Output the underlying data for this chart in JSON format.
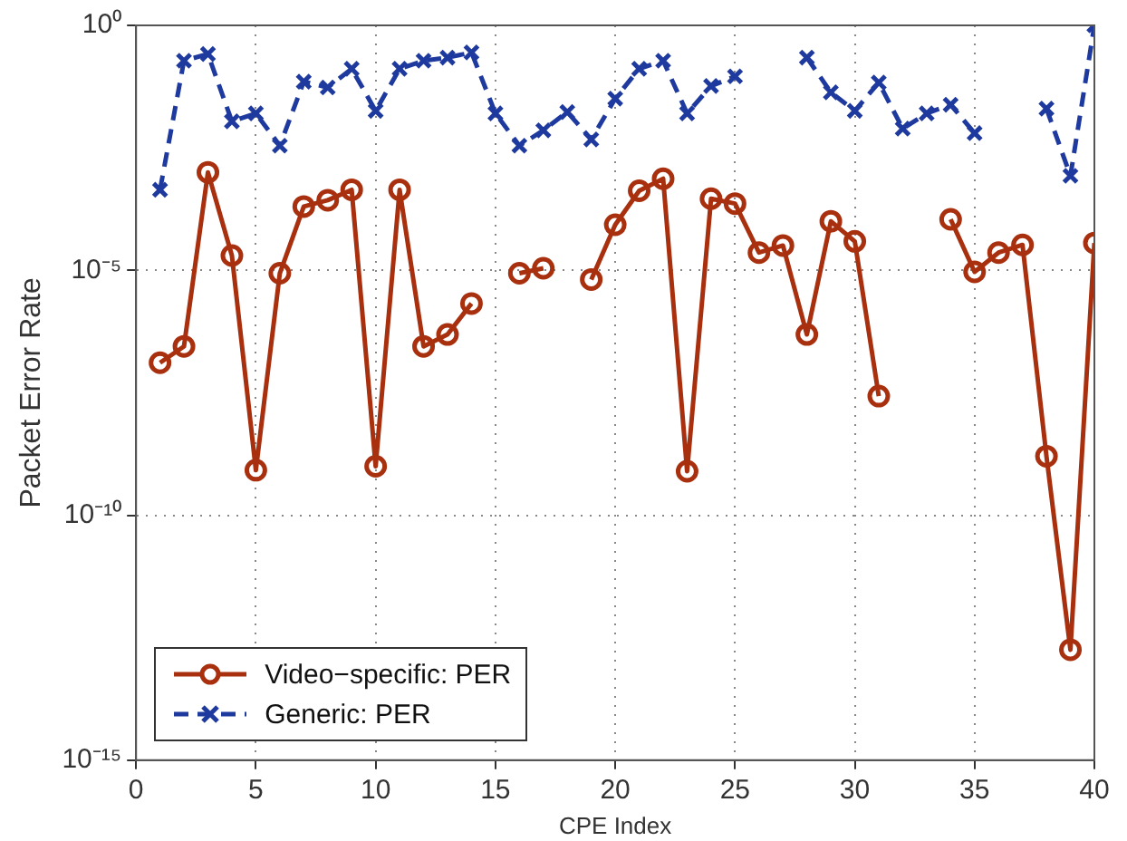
{
  "chart_data": {
    "type": "line",
    "xlabel": "CPE Index",
    "ylabel": "Packet Error Rate",
    "x": [
      1,
      2,
      3,
      4,
      5,
      6,
      7,
      8,
      9,
      10,
      11,
      12,
      13,
      14,
      15,
      16,
      17,
      18,
      19,
      20,
      21,
      22,
      23,
      24,
      25,
      26,
      27,
      28,
      29,
      30,
      31,
      32,
      33,
      34,
      35,
      36,
      37,
      38,
      39,
      40
    ],
    "series": [
      {
        "name": "Video−specific: PER",
        "color": "#a8300f",
        "marker": "circle",
        "line_style": "solid",
        "values": [
          1.3e-07,
          2.8e-07,
          0.001,
          2e-05,
          8.3e-10,
          8.7e-06,
          0.0002,
          0.00027,
          0.00044,
          1e-09,
          0.00044,
          2.8e-07,
          4.9e-07,
          2.1e-06,
          null,
          8.7e-06,
          1.1e-05,
          null,
          6.5e-06,
          8.5e-05,
          0.00042,
          0.00074,
          7.9e-10,
          0.00029,
          0.00023,
          2.3e-05,
          3.2e-05,
          4.9e-07,
          0.0001,
          3.9e-05,
          2.7e-08,
          null,
          null,
          0.00011,
          9.3e-06,
          2.3e-05,
          3.3e-05,
          1.6e-09,
          1.8e-13,
          3.6e-05
        ]
      },
      {
        "name": "Generic: PER",
        "color": "#1f3a9e",
        "marker": "cross",
        "line_style": "dashed",
        "values": [
          0.00044,
          0.19,
          0.26,
          0.011,
          0.016,
          0.0035,
          0.071,
          0.054,
          0.13,
          0.018,
          0.13,
          0.19,
          0.22,
          0.28,
          0.016,
          0.0035,
          0.0072,
          0.017,
          0.0047,
          0.032,
          0.13,
          0.19,
          0.016,
          0.058,
          0.091,
          null,
          null,
          0.22,
          0.043,
          0.018,
          0.068,
          0.0078,
          0.016,
          0.024,
          0.0063,
          null,
          null,
          0.02,
          0.00085,
          1
        ]
      }
    ],
    "log": "y",
    "xlim": [
      0,
      40
    ],
    "xticks": [
      0,
      5,
      10,
      15,
      20,
      25,
      30,
      35,
      40
    ],
    "ylim": [
      1e-15,
      1
    ],
    "yticks": [
      {
        "value": 1e-15,
        "label": "10⁻¹⁵"
      },
      {
        "value": 1e-10,
        "label": "10⁻¹⁰"
      },
      {
        "value": 1e-05,
        "label": "10⁻⁵"
      },
      {
        "value": 1,
        "label": "10⁰"
      }
    ],
    "grid": true,
    "legend": "bottom left"
  }
}
